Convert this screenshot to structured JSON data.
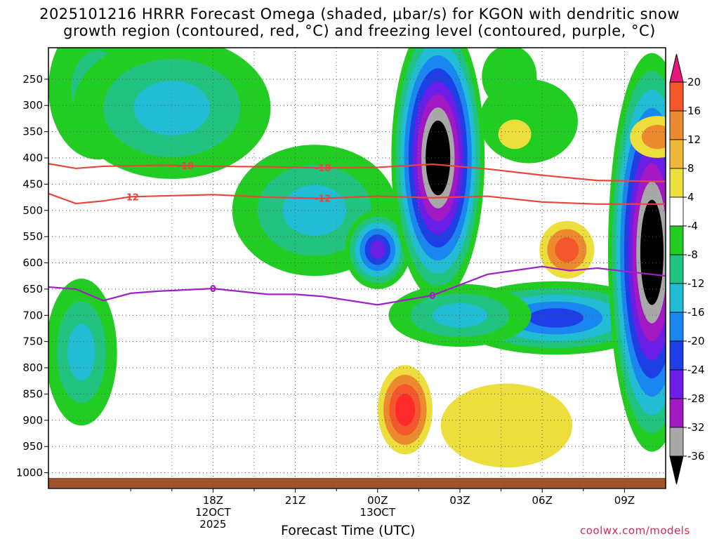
{
  "title": {
    "line1": "2025101216 HRRR Forecast Omega (shaded, μbar/s) for KGON with dendritic snow",
    "line2": "growth region (contoured, red, °C) and freezing level (contoured, purple, °C)"
  },
  "credit": "coolwx.com/models",
  "chart_data": {
    "type": "heatmap",
    "xlabel": "Forecast Time (UTC)",
    "ylabel": "",
    "x_range_hours_from_12Z": [
      0,
      22.5
    ],
    "y_range_mb": [
      190,
      1030
    ],
    "x_ticks": [
      {
        "hour": 6,
        "lines": [
          "18Z",
          "12OCT",
          "2025"
        ]
      },
      {
        "hour": 9,
        "lines": [
          "21Z"
        ]
      },
      {
        "hour": 12,
        "lines": [
          "00Z",
          "13OCT"
        ]
      },
      {
        "hour": 15,
        "lines": [
          "03Z"
        ]
      },
      {
        "hour": 18,
        "lines": [
          "06Z"
        ]
      },
      {
        "hour": 21,
        "lines": [
          "09Z"
        ]
      }
    ],
    "y_ticks": [
      250,
      300,
      350,
      400,
      450,
      500,
      550,
      600,
      650,
      700,
      750,
      800,
      850,
      900,
      950,
      1000
    ],
    "grid": true,
    "colorbar": {
      "levels": [
        20,
        16,
        12,
        8,
        4,
        -4,
        -8,
        -12,
        -16,
        -20,
        -24,
        -28,
        -32,
        -36
      ],
      "colors": [
        "#ff2b2b",
        "#f2582c",
        "#ec8a2f",
        "#f0b838",
        "#ecde3d",
        "#ffffff",
        "#22cc22",
        "#22c380",
        "#22bcd4",
        "#1a86f0",
        "#1e3ee6",
        "#6a1ee6",
        "#a218c2",
        "#a8a8a8",
        "#000000"
      ],
      "top_arrow_color": "#e6187a",
      "bottom_arrow_color": "#000000"
    },
    "omega_features": [
      {
        "kind": "ascent",
        "center": [
          1.8,
          268
        ],
        "extent": [
          1.8,
          135
        ],
        "peak": -10
      },
      {
        "kind": "ascent",
        "center": [
          4.5,
          305
        ],
        "extent": [
          3.6,
          135
        ],
        "peak": -12
      },
      {
        "kind": "ascent",
        "center": [
          9.7,
          500
        ],
        "extent": [
          3.0,
          125
        ],
        "peak": -14
      },
      {
        "kind": "ascent",
        "center": [
          12.0,
          575
        ],
        "extent": [
          1.2,
          75
        ],
        "peak": -24
      },
      {
        "kind": "ascent",
        "center": [
          14.2,
          400
        ],
        "extent": [
          1.7,
          270
        ],
        "peak": -40
      },
      {
        "kind": "ascent",
        "center": [
          18.5,
          705
        ],
        "extent": [
          3.8,
          70
        ],
        "peak": -22
      },
      {
        "kind": "ascent",
        "center": [
          15.0,
          700
        ],
        "extent": [
          2.6,
          60
        ],
        "peak": -12
      },
      {
        "kind": "ascent",
        "center": [
          22.0,
          580
        ],
        "extent": [
          1.6,
          380
        ],
        "peak": -40
      },
      {
        "kind": "ascent",
        "center": [
          1.2,
          770
        ],
        "extent": [
          1.3,
          140
        ],
        "peak": -12
      },
      {
        "kind": "ascent",
        "center": [
          16.8,
          245
        ],
        "extent": [
          1.0,
          60
        ],
        "peak": -7
      },
      {
        "kind": "ascent",
        "center": [
          17.5,
          330
        ],
        "extent": [
          1.8,
          80
        ],
        "peak": -7
      },
      {
        "kind": "descent",
        "center": [
          13.0,
          880
        ],
        "extent": [
          1.0,
          85
        ],
        "peak": 18
      },
      {
        "kind": "descent",
        "center": [
          18.9,
          575
        ],
        "extent": [
          1.0,
          55
        ],
        "peak": 14
      },
      {
        "kind": "descent",
        "center": [
          22.2,
          360
        ],
        "extent": [
          1.0,
          40
        ],
        "peak": 10
      },
      {
        "kind": "descent",
        "center": [
          17.0,
          355
        ],
        "extent": [
          0.6,
          28
        ],
        "peak": 6
      },
      {
        "kind": "descent",
        "center": [
          16.7,
          910
        ],
        "extent": [
          2.4,
          80
        ],
        "peak": 6
      }
    ],
    "series": [
      {
        "name": "-18",
        "color": "#e8453c",
        "x": [
          0,
          1,
          2,
          4,
          6,
          8,
          10,
          12,
          14,
          16,
          18,
          20,
          22.5
        ],
        "y": [
          411,
          420,
          416,
          414,
          416,
          417,
          419,
          418,
          412,
          421,
          433,
          443,
          445
        ]
      },
      {
        "name": "-12",
        "color": "#e8453c",
        "x": [
          0,
          1,
          2,
          3,
          6,
          8,
          10,
          12,
          14,
          16,
          18,
          20,
          22.5
        ],
        "y": [
          468,
          487,
          482,
          474,
          470,
          475,
          477,
          473,
          476,
          473,
          484,
          488,
          488
        ]
      },
      {
        "name": "0",
        "color": "#a020c8",
        "x": [
          0,
          1,
          2,
          3,
          4,
          6,
          8,
          9,
          10,
          12,
          14,
          16,
          18,
          19,
          20,
          22.5
        ],
        "y": [
          646,
          650,
          672,
          658,
          654,
          649,
          660,
          660,
          664,
          680,
          662,
          622,
          607,
          615,
          610,
          625
        ]
      }
    ]
  }
}
